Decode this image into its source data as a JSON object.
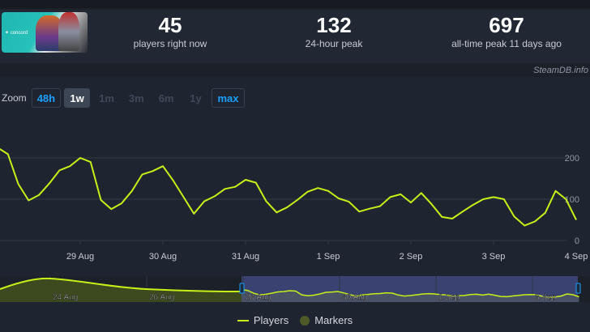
{
  "game": {
    "name": "Concord",
    "logo_text": "concord"
  },
  "stats": [
    {
      "value": "45",
      "label": "players right now"
    },
    {
      "value": "132",
      "label": "24-hour peak"
    },
    {
      "value": "697",
      "label": "all-time peak 11 days ago"
    }
  ],
  "credit": "SteamDB.info",
  "zoom": {
    "label": "Zoom",
    "options": [
      {
        "label": "48h",
        "state": "enabled"
      },
      {
        "label": "1w",
        "state": "selected"
      },
      {
        "label": "1m",
        "state": "disabled"
      },
      {
        "label": "3m",
        "state": "disabled"
      },
      {
        "label": "6m",
        "state": "disabled"
      },
      {
        "label": "1y",
        "state": "disabled"
      },
      {
        "label": "max",
        "state": "enabled"
      }
    ]
  },
  "chart_data": {
    "type": "line",
    "x_ticks": [
      "29 Aug",
      "30 Aug",
      "31 Aug",
      "1 Sep",
      "2 Sep",
      "3 Sep",
      "4 Sep"
    ],
    "y_ticks": [
      "0",
      "100",
      "200"
    ],
    "ylim": [
      0,
      220
    ],
    "grid": true,
    "series": [
      {
        "name": "Players",
        "color": "#c6f018",
        "x_start": "28 Aug 00:00",
        "x_step_hours": 3,
        "values": [
          225,
          209,
          137,
          97,
          110,
          138,
          170,
          180,
          200,
          190,
          98,
          76,
          90,
          120,
          160,
          168,
          180,
          145,
          105,
          65,
          95,
          107,
          125,
          130,
          147,
          140,
          95,
          68,
          80,
          98,
          118,
          127,
          120,
          102,
          94,
          70,
          77,
          83,
          105,
          112,
          92,
          115,
          88,
          57,
          53,
          70,
          86,
          100,
          105,
          100,
          58,
          36,
          46,
          67,
          120,
          100,
          50
        ]
      }
    ],
    "navigator": {
      "x_ticks": [
        "24 Aug",
        "26 Aug",
        "28 Aug",
        "30 Aug",
        "1 Sep",
        "3 Sep"
      ]
    },
    "legend": {
      "placement": "bottom",
      "items": [
        "Players",
        "Markers"
      ]
    },
    "colors": {
      "players": "#c6f018",
      "markers": "#4e5b26",
      "selection": "#3a4272"
    }
  }
}
